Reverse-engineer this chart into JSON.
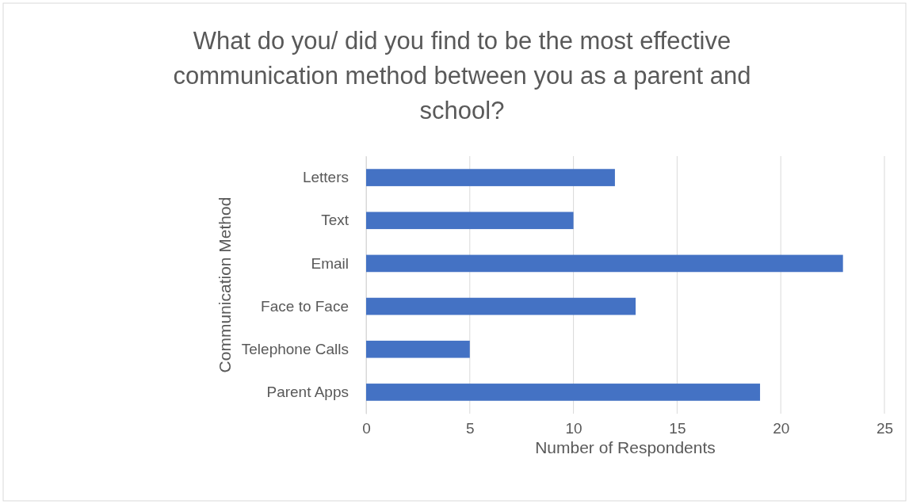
{
  "chart_data": {
    "type": "bar",
    "orientation": "horizontal",
    "title": "What do you/ did you find to be the most effective communication method between you as a parent and school?",
    "xlabel": "Number of Respondents",
    "ylabel": "Communication Method",
    "categories": [
      "Letters",
      "Text",
      "Email",
      "Face to Face",
      "Telephone Calls",
      "Parent Apps"
    ],
    "values": [
      12,
      10,
      23,
      13,
      5,
      19
    ],
    "color": "#4472c4",
    "xlim": [
      0,
      25
    ],
    "xticks": [
      0,
      5,
      10,
      15,
      20,
      25
    ],
    "grid": "x"
  }
}
